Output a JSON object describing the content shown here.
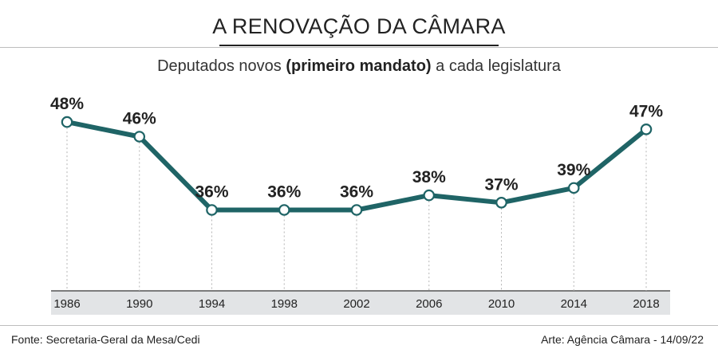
{
  "header": {
    "title": "A RENOVAÇÃO DA CÂMARA",
    "subtitle_pre": "Deputados novos ",
    "subtitle_bold": "(primeiro mandato)",
    "subtitle_post": " a cada legislatura"
  },
  "footer": {
    "source": "Fonte: Secretaria-Geral da Mesa/Cedi",
    "credit": "Arte: Agência Câmara - 14/09/22"
  },
  "chart_data": {
    "type": "line",
    "categories": [
      "1986",
      "1990",
      "1994",
      "1998",
      "2002",
      "2006",
      "2010",
      "2014",
      "2018"
    ],
    "values": [
      48,
      46,
      36,
      36,
      36,
      38,
      37,
      39,
      47
    ],
    "data_labels": [
      "48%",
      "46%",
      "36%",
      "36%",
      "36%",
      "38%",
      "37%",
      "39%",
      "47%"
    ],
    "title": "A RENOVAÇÃO DA CÂMARA",
    "subtitle": "Deputados novos (primeiro mandato) a cada legislatura",
    "xlabel": "",
    "ylabel": "",
    "grid": false,
    "line_color": "#1f6466",
    "axis_band_color": "#e2e4e6"
  }
}
